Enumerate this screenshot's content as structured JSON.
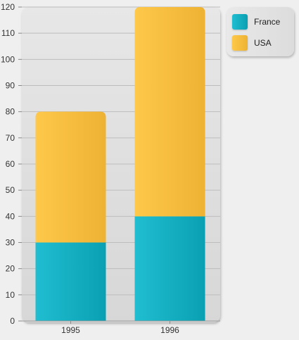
{
  "chart_data": {
    "type": "bar",
    "stacked": true,
    "categories": [
      "1995",
      "1996"
    ],
    "series": [
      {
        "name": "France",
        "values": [
          30,
          40
        ],
        "color": "#1ab4c8"
      },
      {
        "name": "USA",
        "values": [
          50,
          80
        ],
        "color": "#f7bf3f"
      }
    ],
    "ylim": [
      0,
      120
    ],
    "yticks": [
      "0",
      "10",
      "20",
      "30",
      "40",
      "50",
      "60",
      "70",
      "80",
      "90",
      "100",
      "110",
      "120"
    ],
    "grid": true,
    "legend": {
      "placement": "top-right",
      "items": [
        {
          "label": "France",
          "color": "#1ab4c8"
        },
        {
          "label": "USA",
          "color": "#f7bf3f"
        }
      ]
    },
    "title": "",
    "xlabel": "",
    "ylabel": ""
  }
}
